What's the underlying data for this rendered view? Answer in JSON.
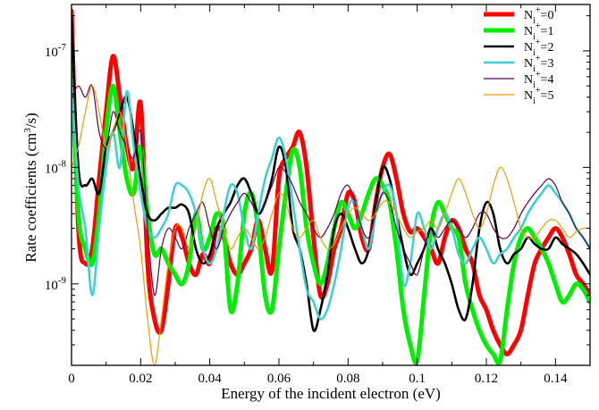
{
  "chart_data": {
    "type": "line",
    "title": "",
    "xlabel": "Energy of the incident electron (eV)",
    "ylabel": "Rate coefficients (cm³/s)",
    "xlim": [
      0,
      0.15
    ],
    "ylim": [
      2e-10,
      2.5e-07
    ],
    "y_scale": "log",
    "grid": false,
    "legend_position": "top-right",
    "x_ticks": [
      {
        "value": 0,
        "label": "0"
      },
      {
        "value": 0.02,
        "label": "0.02"
      },
      {
        "value": 0.04,
        "label": "0.04"
      },
      {
        "value": 0.06,
        "label": "0.06"
      },
      {
        "value": 0.08,
        "label": "0.08"
      },
      {
        "value": 0.1,
        "label": "0.1"
      },
      {
        "value": 0.12,
        "label": "0.12"
      },
      {
        "value": 0.14,
        "label": "0.14"
      }
    ],
    "y_ticks": [
      {
        "value": 1e-09,
        "base": "10",
        "exp": "-9"
      },
      {
        "value": 1e-08,
        "base": "10",
        "exp": "-8"
      },
      {
        "value": 1e-07,
        "base": "10",
        "exp": "-7"
      }
    ],
    "series": [
      {
        "legend": {
          "base": "N",
          "sub": "i",
          "sup": "+",
          "val": "=0"
        },
        "color": "#ff0000",
        "width": "thick",
        "x": [
          0,
          0.002,
          0.004,
          0.006,
          0.008,
          0.01,
          0.012,
          0.014,
          0.016,
          0.018,
          0.02,
          0.022,
          0.024,
          0.026,
          0.028,
          0.03,
          0.032,
          0.034,
          0.036,
          0.038,
          0.04,
          0.042,
          0.044,
          0.046,
          0.048,
          0.05,
          0.052,
          0.054,
          0.056,
          0.058,
          0.06,
          0.062,
          0.064,
          0.066,
          0.068,
          0.07,
          0.072,
          0.074,
          0.076,
          0.078,
          0.08,
          0.082,
          0.084,
          0.086,
          0.088,
          0.09,
          0.092,
          0.094,
          0.096,
          0.098,
          0.1,
          0.102,
          0.104,
          0.106,
          0.108,
          0.11,
          0.112,
          0.114,
          0.116,
          0.118,
          0.12,
          0.122,
          0.124,
          0.126,
          0.128,
          0.13,
          0.132,
          0.134,
          0.136,
          0.138,
          0.14,
          0.142,
          0.144,
          0.146,
          0.148,
          0.15
        ],
        "y": [
          2.2e-07,
          3e-09,
          1.5e-09,
          2e-09,
          8e-09,
          3e-08,
          9e-08,
          4e-08,
          1.5e-08,
          1e-08,
          3.5e-08,
          1.5e-09,
          5e-10,
          4e-10,
          1e-09,
          3e-09,
          2.5e-09,
          1.5e-09,
          1.2e-09,
          1.8e-09,
          1.5e-09,
          3e-09,
          2.5e-09,
          1.5e-09,
          1.2e-09,
          1.5e-09,
          2e-09,
          3.5e-09,
          2e-09,
          1.3e-09,
          8e-09,
          1.2e-08,
          1.5e-08,
          2e-08,
          1e-08,
          2.5e-09,
          8e-10,
          1e-09,
          2e-09,
          3e-09,
          6e-09,
          5e-09,
          2.5e-09,
          2e-09,
          5e-09,
          1e-08,
          1.3e-08,
          8e-09,
          4e-09,
          2.8e-09,
          3e-09,
          2.5e-09,
          2e-09,
          1.5e-09,
          2.5e-09,
          3.5e-09,
          3e-09,
          2e-09,
          1.5e-09,
          8e-10,
          6e-10,
          4e-10,
          3e-10,
          2.5e-10,
          3e-10,
          4e-10,
          8e-10,
          1.5e-09,
          2e-09,
          2.5e-09,
          3e-09,
          2.5e-09,
          1.8e-09,
          1.2e-09,
          1e-09,
          8e-10
        ]
      },
      {
        "legend": {
          "base": "N",
          "sub": "i",
          "sup": "+",
          "val": "=1"
        },
        "color": "#00ee00",
        "width": "thick",
        "x": [
          0,
          0.002,
          0.004,
          0.006,
          0.008,
          0.01,
          0.012,
          0.014,
          0.016,
          0.018,
          0.02,
          0.022,
          0.024,
          0.026,
          0.028,
          0.03,
          0.032,
          0.034,
          0.036,
          0.038,
          0.04,
          0.042,
          0.044,
          0.046,
          0.048,
          0.05,
          0.052,
          0.054,
          0.056,
          0.058,
          0.06,
          0.062,
          0.064,
          0.066,
          0.068,
          0.07,
          0.072,
          0.074,
          0.076,
          0.078,
          0.08,
          0.082,
          0.084,
          0.086,
          0.088,
          0.09,
          0.092,
          0.094,
          0.096,
          0.098,
          0.1,
          0.102,
          0.104,
          0.106,
          0.108,
          0.11,
          0.112,
          0.114,
          0.116,
          0.118,
          0.12,
          0.122,
          0.124,
          0.126,
          0.128,
          0.13,
          0.132,
          0.134,
          0.136,
          0.138,
          0.14,
          0.142,
          0.144,
          0.146,
          0.148,
          0.15
        ],
        "y": [
          8e-08,
          4e-09,
          2e-09,
          1.5e-09,
          4e-09,
          2e-08,
          5e-08,
          2e-08,
          8e-09,
          6e-09,
          1.5e-08,
          4e-09,
          1.8e-09,
          2e-09,
          1.5e-09,
          1.2e-09,
          1e-09,
          1.5e-09,
          4e-09,
          2e-09,
          2.5e-09,
          4e-09,
          3e-09,
          6e-10,
          1e-09,
          4e-09,
          6e-09,
          3e-09,
          8e-10,
          6e-10,
          2e-09,
          6e-09,
          1.4e-08,
          1e-08,
          3e-09,
          1.5e-09,
          1e-09,
          1.5e-09,
          3e-09,
          5e-09,
          4e-09,
          3e-09,
          4e-09,
          6e-09,
          8e-09,
          7e-09,
          5e-09,
          2e-09,
          6e-10,
          3e-10,
          2.2e-10,
          8e-10,
          3e-09,
          5e-09,
          4e-09,
          3e-09,
          2.5e-09,
          1e-09,
          6e-10,
          4e-10,
          3e-10,
          2.5e-10,
          2.2e-10,
          6e-10,
          1.5e-09,
          2.5e-09,
          3e-09,
          2.5e-09,
          2e-09,
          1.5e-09,
          1e-09,
          7e-10,
          8e-10,
          1e-09,
          9e-10,
          7e-10
        ]
      },
      {
        "legend": {
          "base": "N",
          "sub": "i",
          "sup": "+",
          "val": "=2"
        },
        "color": "#000000",
        "width": "medium",
        "x": [
          0,
          0.002,
          0.004,
          0.006,
          0.008,
          0.01,
          0.012,
          0.014,
          0.016,
          0.018,
          0.02,
          0.022,
          0.024,
          0.026,
          0.028,
          0.03,
          0.032,
          0.034,
          0.036,
          0.038,
          0.04,
          0.042,
          0.044,
          0.046,
          0.048,
          0.05,
          0.052,
          0.054,
          0.056,
          0.058,
          0.06,
          0.062,
          0.064,
          0.066,
          0.068,
          0.07,
          0.072,
          0.074,
          0.076,
          0.078,
          0.08,
          0.082,
          0.084,
          0.086,
          0.088,
          0.09,
          0.092,
          0.094,
          0.096,
          0.098,
          0.1,
          0.102,
          0.104,
          0.106,
          0.108,
          0.11,
          0.112,
          0.114,
          0.116,
          0.118,
          0.12,
          0.122,
          0.124,
          0.126,
          0.128,
          0.13,
          0.132,
          0.134,
          0.136,
          0.138,
          0.14,
          0.142,
          0.144,
          0.146,
          0.148,
          0.15
        ],
        "y": [
          2e-07,
          1e-08,
          7e-09,
          8e-09,
          6e-09,
          1.5e-08,
          2e-08,
          3e-08,
          4e-08,
          2e-08,
          8e-09,
          4e-09,
          3.5e-09,
          4e-09,
          4.5e-09,
          4.5e-09,
          4.8e-09,
          4e-09,
          2e-09,
          1.5e-09,
          1.8e-09,
          3e-09,
          4e-09,
          5e-09,
          7e-09,
          8e-09,
          6e-09,
          4e-09,
          5e-09,
          8e-09,
          1.5e-08,
          1e-08,
          3e-09,
          2e-09,
          1e-09,
          4e-10,
          6e-10,
          1.2e-09,
          3e-09,
          4e-09,
          3e-09,
          2e-09,
          1.5e-09,
          2e-09,
          5e-09,
          1e-08,
          8e-09,
          4e-09,
          2e-09,
          1.2e-09,
          1.5e-09,
          2e-09,
          3e-09,
          2e-09,
          1.5e-09,
          1e-09,
          6e-10,
          5e-10,
          1e-09,
          3e-09,
          5e-09,
          4e-09,
          2e-09,
          1.5e-09,
          1.8e-09,
          2e-09,
          2.5e-09,
          2.2e-09,
          2e-09,
          2e-09,
          2.5e-09,
          2.2e-09,
          2e-09,
          1.8e-09,
          1.5e-09,
          1.2e-09
        ]
      },
      {
        "legend": {
          "base": "N",
          "sub": "i",
          "sup": "+",
          "val": "=3"
        },
        "color": "#40d0d0",
        "width": "medium",
        "x": [
          0,
          0.002,
          0.004,
          0.006,
          0.008,
          0.01,
          0.012,
          0.014,
          0.016,
          0.018,
          0.02,
          0.022,
          0.024,
          0.026,
          0.028,
          0.03,
          0.032,
          0.034,
          0.036,
          0.038,
          0.04,
          0.042,
          0.044,
          0.046,
          0.048,
          0.05,
          0.052,
          0.054,
          0.056,
          0.058,
          0.06,
          0.062,
          0.064,
          0.066,
          0.068,
          0.07,
          0.072,
          0.074,
          0.076,
          0.078,
          0.08,
          0.082,
          0.084,
          0.086,
          0.088,
          0.09,
          0.092,
          0.094,
          0.096,
          0.098,
          0.1,
          0.102,
          0.104,
          0.106,
          0.108,
          0.11,
          0.112,
          0.114,
          0.116,
          0.118,
          0.12,
          0.122,
          0.124,
          0.126,
          0.128,
          0.13,
          0.132,
          0.134,
          0.136,
          0.138,
          0.14,
          0.142,
          0.144,
          0.146,
          0.148,
          0.15
        ],
        "y": [
          5e-08,
          7e-09,
          3e-09,
          8e-10,
          3e-09,
          1e-08,
          2e-08,
          1e-08,
          4.5e-08,
          1.5e-08,
          6e-09,
          3e-09,
          2.5e-09,
          3e-09,
          4e-09,
          7e-09,
          7e-09,
          6e-09,
          4e-09,
          2e-09,
          1.5e-09,
          2e-09,
          4e-09,
          7e-09,
          6e-09,
          3e-09,
          2e-09,
          4e-09,
          8e-09,
          1.2e-08,
          1.8e-08,
          1.2e-08,
          5e-09,
          2e-09,
          9e-10,
          7e-10,
          5e-10,
          6e-10,
          1e-09,
          2e-09,
          4.5e-09,
          5e-09,
          3e-09,
          2e-09,
          4e-09,
          6e-09,
          7e-09,
          4e-09,
          1e-09,
          1.5e-09,
          4e-09,
          3e-09,
          2e-09,
          3e-09,
          4e-09,
          3e-09,
          1.8e-09,
          1.5e-09,
          2e-09,
          2.5e-09,
          2e-09,
          1.5e-09,
          1.8e-09,
          2e-09,
          2.5e-09,
          3e-09,
          4e-09,
          5e-09,
          6e-09,
          7e-09,
          6e-09,
          5e-09,
          4e-09,
          3e-09,
          2.5e-09,
          2e-09
        ]
      },
      {
        "legend": {
          "base": "N",
          "sub": "i",
          "sup": "+",
          "val": "=4"
        },
        "color": "#600050",
        "width": "thin",
        "x": [
          0,
          0.002,
          0.004,
          0.006,
          0.008,
          0.01,
          0.012,
          0.014,
          0.016,
          0.018,
          0.02,
          0.022,
          0.024,
          0.026,
          0.028,
          0.03,
          0.032,
          0.034,
          0.036,
          0.038,
          0.04,
          0.042,
          0.044,
          0.046,
          0.048,
          0.05,
          0.052,
          0.054,
          0.056,
          0.058,
          0.06,
          0.062,
          0.064,
          0.066,
          0.068,
          0.07,
          0.072,
          0.074,
          0.076,
          0.078,
          0.08,
          0.082,
          0.084,
          0.086,
          0.088,
          0.09,
          0.092,
          0.094,
          0.096,
          0.098,
          0.1,
          0.102,
          0.104,
          0.106,
          0.108,
          0.11,
          0.112,
          0.114,
          0.116,
          0.118,
          0.12,
          0.122,
          0.124,
          0.126,
          0.128,
          0.13,
          0.132,
          0.134,
          0.136,
          0.138,
          0.14,
          0.142,
          0.144,
          0.146,
          0.148,
          0.15
        ],
        "y": [
          4e-08,
          5e-08,
          4e-08,
          5e-08,
          2e-08,
          1.5e-08,
          3e-08,
          2e-08,
          1.5e-08,
          1.2e-08,
          2e-08,
          3e-09,
          8e-10,
          2e-09,
          3e-09,
          2.5e-09,
          2e-09,
          3e-09,
          4e-09,
          5e-09,
          3e-09,
          2e-09,
          3e-09,
          4e-09,
          5e-09,
          6e-09,
          5e-09,
          4e-09,
          5e-09,
          7e-09,
          1e-08,
          9e-09,
          7e-09,
          5e-09,
          4e-09,
          3e-09,
          2.5e-09,
          3e-09,
          4e-09,
          6e-09,
          7e-09,
          5e-09,
          3e-09,
          2.5e-09,
          4e-09,
          6e-09,
          5e-09,
          3e-09,
          2e-09,
          1.5e-09,
          1.2e-09,
          2e-09,
          3e-09,
          2.5e-09,
          3e-09,
          3.5e-09,
          3e-09,
          2.5e-09,
          3e-09,
          4e-09,
          4e-09,
          3e-09,
          2.5e-09,
          2.5e-09,
          3e-09,
          4e-09,
          5e-09,
          6e-09,
          7e-09,
          8e-09,
          7e-09,
          5e-09,
          4e-09,
          3e-09,
          2.5e-09,
          2e-09
        ]
      },
      {
        "legend": {
          "base": "N",
          "sub": "i",
          "sup": "+",
          "val": "=5"
        },
        "color": "#e8a000",
        "width": "thin",
        "x": [
          0,
          0.002,
          0.004,
          0.006,
          0.008,
          0.01,
          0.012,
          0.014,
          0.016,
          0.018,
          0.02,
          0.022,
          0.024,
          0.026,
          0.028,
          0.03,
          0.032,
          0.034,
          0.036,
          0.038,
          0.04,
          0.042,
          0.044,
          0.046,
          0.048,
          0.05,
          0.052,
          0.054,
          0.056,
          0.058,
          0.06,
          0.062,
          0.064,
          0.066,
          0.068,
          0.07,
          0.072,
          0.074,
          0.076,
          0.078,
          0.08,
          0.082,
          0.084,
          0.086,
          0.088,
          0.09,
          0.092,
          0.094,
          0.096,
          0.098,
          0.1,
          0.102,
          0.104,
          0.106,
          0.108,
          0.11,
          0.112,
          0.114,
          0.116,
          0.118,
          0.12,
          0.122,
          0.124,
          0.126,
          0.128,
          0.13,
          0.132,
          0.134,
          0.136,
          0.138,
          0.14,
          0.142,
          0.144,
          0.146,
          0.148,
          0.15
        ],
        "y": [
          1e-08,
          1.5e-08,
          3e-08,
          5e-08,
          3e-08,
          1.5e-08,
          2e-08,
          3e-08,
          1.5e-08,
          5e-09,
          2e-09,
          5e-10,
          2e-10,
          5e-10,
          1.5e-09,
          3e-09,
          3e-09,
          2e-09,
          3e-09,
          6e-09,
          8e-09,
          5e-09,
          3e-09,
          2e-09,
          2.5e-09,
          3e-09,
          2.5e-09,
          2e-09,
          2.5e-09,
          4e-09,
          6e-09,
          5e-09,
          3e-09,
          2.5e-09,
          3e-09,
          3.5e-09,
          2.5e-09,
          2e-09,
          2.2e-09,
          3e-09,
          4e-09,
          4.5e-09,
          4e-09,
          3.5e-09,
          4e-09,
          5e-09,
          5e-09,
          4e-09,
          3e-09,
          2.5e-09,
          2.8e-09,
          3e-09,
          3.5e-09,
          3e-09,
          4e-09,
          6e-09,
          8e-09,
          6e-09,
          4e-09,
          3e-09,
          4e-09,
          7e-09,
          1e-08,
          8e-09,
          5e-09,
          3e-09,
          2.5e-09,
          2.5e-09,
          3e-09,
          3.5e-09,
          3.5e-09,
          3e-09,
          2.5e-09,
          2.8e-09,
          3e-09,
          3e-09
        ]
      }
    ]
  }
}
